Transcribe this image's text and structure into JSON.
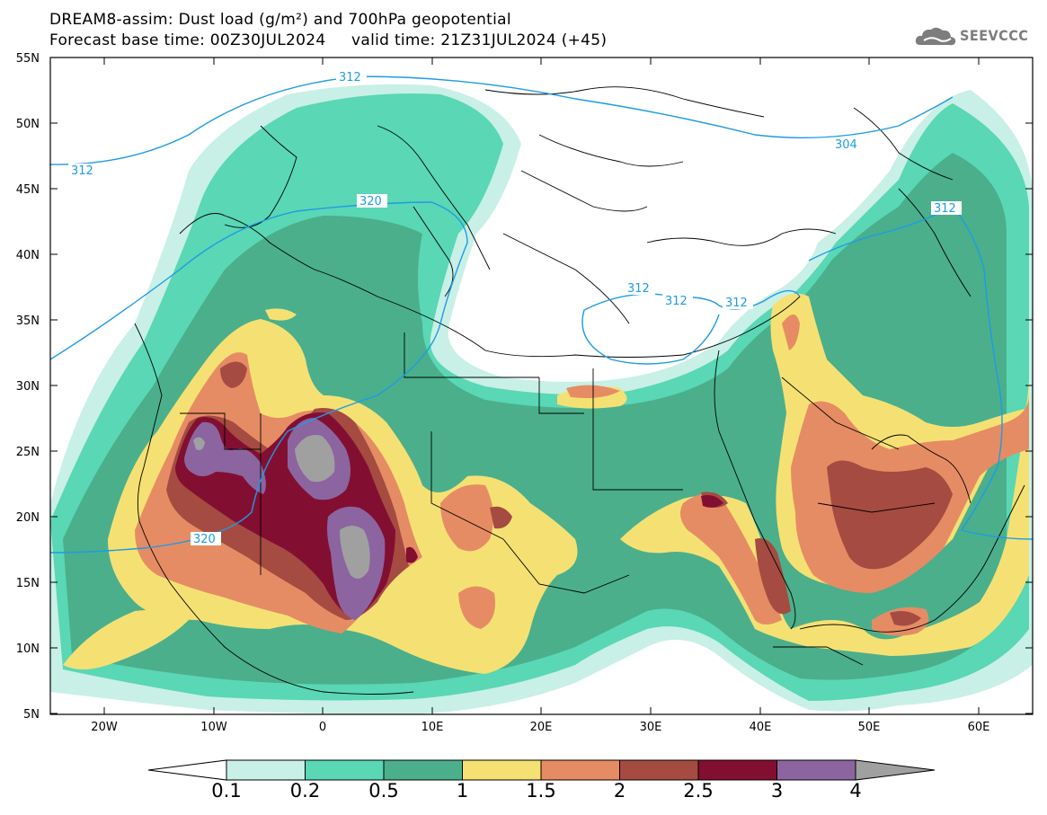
{
  "header": {
    "title_line1": "DREAM8-assim: Dust load (g/m²) and 700hPa geopotential",
    "title_line2": "Forecast base time: 00Z30JUL2024     valid time: 21Z31JUL2024 (+45)",
    "logo_text": "SEEVCCC"
  },
  "axes": {
    "lat_labels": [
      "55N",
      "50N",
      "45N",
      "40N",
      "35N",
      "30N",
      "25N",
      "20N",
      "15N",
      "10N",
      "5N"
    ],
    "lon_labels": [
      "20W",
      "10W",
      "0",
      "10E",
      "20E",
      "30E",
      "40E",
      "50E",
      "60E"
    ]
  },
  "contours": {
    "labels": [
      "312",
      "312",
      "320",
      "304",
      "312",
      "312",
      "312",
      "312",
      "320"
    ],
    "line_color": "#1e9be6"
  },
  "colorbar": {
    "labels": [
      "0.1",
      "0.2",
      "0.5",
      "1",
      "1.5",
      "2",
      "2.5",
      "3",
      "4"
    ],
    "colors": [
      "#c8f0e6",
      "#5ad7b4",
      "#4baf8c",
      "#f5e173",
      "#e68c64",
      "#a54b41",
      "#820f32",
      "#8c64a0",
      "#a0a0a0"
    ]
  },
  "palette": {
    "l1": "#c8f0e6",
    "l2": "#5ad7b4",
    "l3": "#4baf8c",
    "l4": "#f5e173",
    "l5": "#e68c64",
    "l6": "#a54b41",
    "l7": "#820f32",
    "l8": "#8c64a0",
    "l9": "#a0a0a0"
  }
}
